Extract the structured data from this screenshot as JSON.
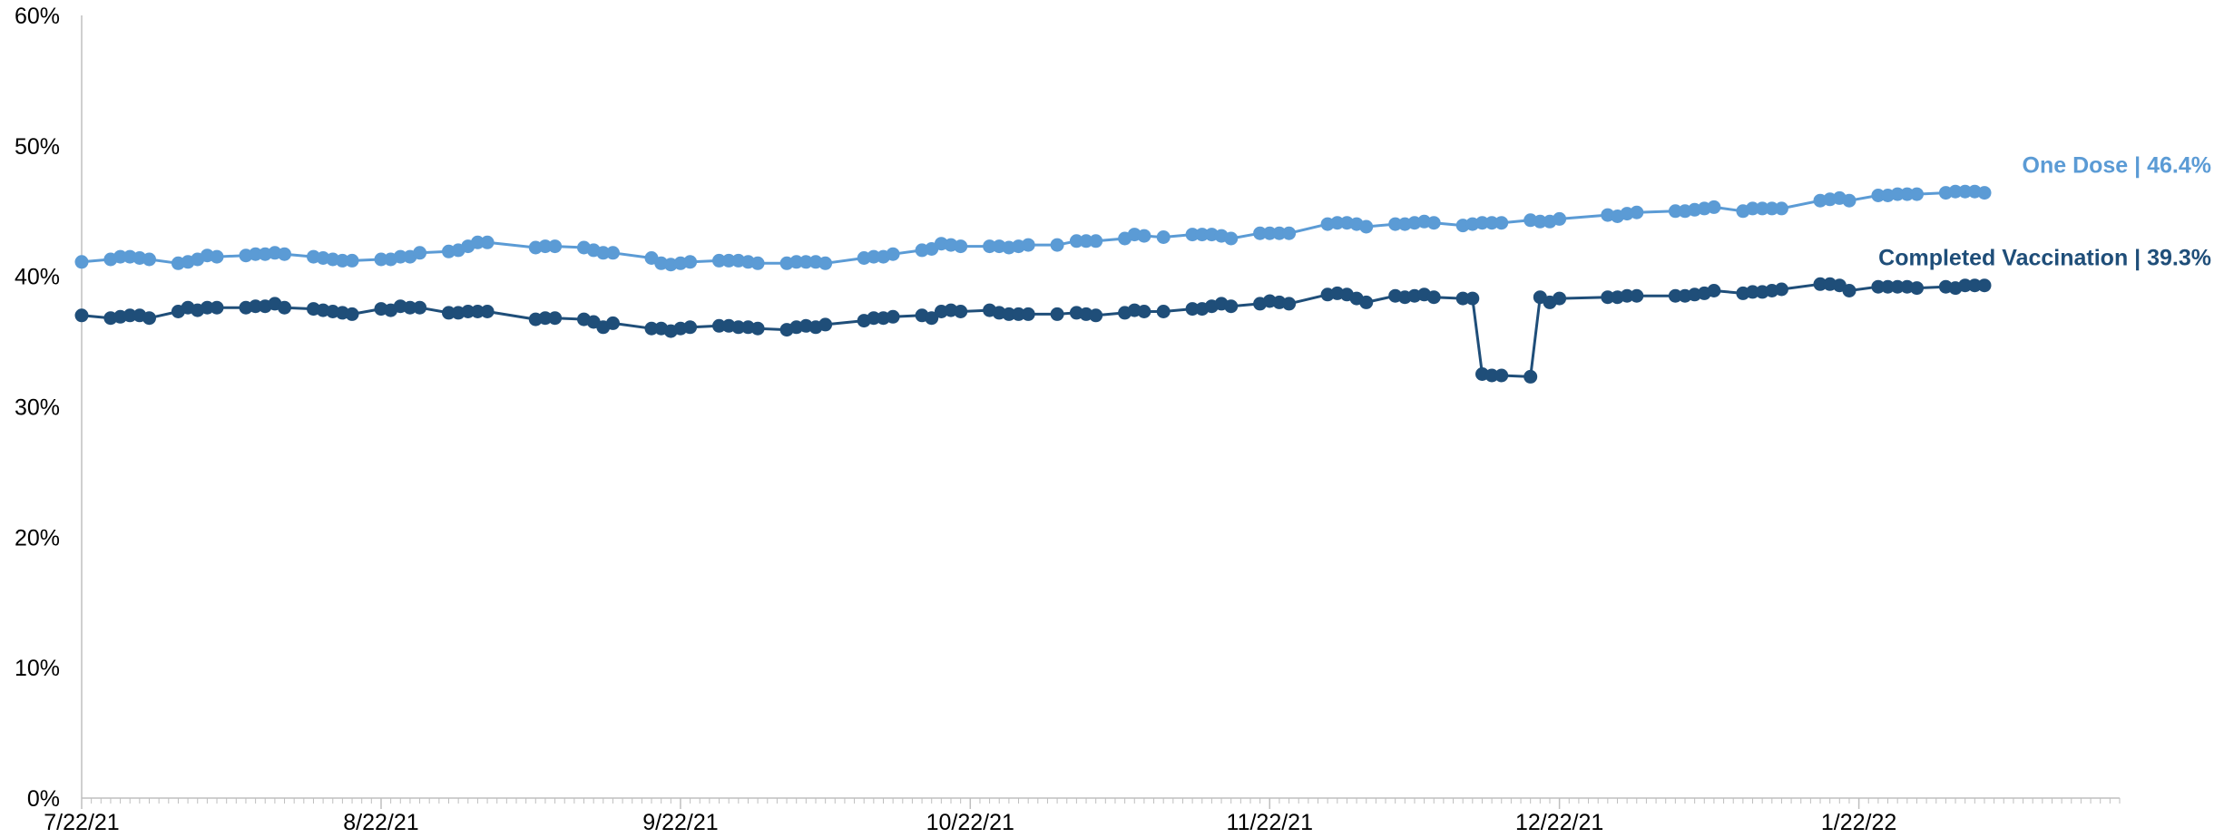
{
  "chart_data": {
    "type": "line",
    "title": "",
    "xlabel": "",
    "ylabel": "",
    "ylim": [
      0,
      0.6
    ],
    "y_ticks": [
      {
        "value": 0.0,
        "label": "0%"
      },
      {
        "value": 0.1,
        "label": "10%"
      },
      {
        "value": 0.2,
        "label": "20%"
      },
      {
        "value": 0.3,
        "label": "30%"
      },
      {
        "value": 0.4,
        "label": "40%"
      },
      {
        "value": 0.5,
        "label": "50%"
      },
      {
        "value": 0.6,
        "label": "60%"
      }
    ],
    "x_range": [
      "2021-07-22",
      "2022-02-18"
    ],
    "x_ticks": [
      {
        "value": "2021-07-22",
        "label": "7/22/21"
      },
      {
        "value": "2021-08-22",
        "label": "8/22/21"
      },
      {
        "value": "2021-09-22",
        "label": "9/22/21"
      },
      {
        "value": "2021-10-22",
        "label": "10/22/21"
      },
      {
        "value": "2021-11-22",
        "label": "11/22/21"
      },
      {
        "value": "2021-12-22",
        "label": "12/22/21"
      },
      {
        "value": "2022-01-22",
        "label": "1/22/22"
      }
    ],
    "grid": false,
    "legend": "none",
    "series": [
      {
        "key": "one_dose",
        "label": "One Dose | 46.4%",
        "color": "#5b9bd5",
        "x": [
          "2021-07-22",
          "2021-07-25",
          "2021-07-26",
          "2021-07-27",
          "2021-07-28",
          "2021-07-29",
          "2021-08-01",
          "2021-08-02",
          "2021-08-03",
          "2021-08-04",
          "2021-08-05",
          "2021-08-08",
          "2021-08-09",
          "2021-08-10",
          "2021-08-11",
          "2021-08-12",
          "2021-08-15",
          "2021-08-16",
          "2021-08-17",
          "2021-08-18",
          "2021-08-19",
          "2021-08-22",
          "2021-08-23",
          "2021-08-24",
          "2021-08-25",
          "2021-08-26",
          "2021-08-29",
          "2021-08-30",
          "2021-08-31",
          "2021-09-01",
          "2021-09-02",
          "2021-09-07",
          "2021-09-08",
          "2021-09-09",
          "2021-09-12",
          "2021-09-13",
          "2021-09-14",
          "2021-09-15",
          "2021-09-19",
          "2021-09-20",
          "2021-09-21",
          "2021-09-22",
          "2021-09-23",
          "2021-09-26",
          "2021-09-27",
          "2021-09-28",
          "2021-09-29",
          "2021-09-30",
          "2021-10-03",
          "2021-10-04",
          "2021-10-05",
          "2021-10-06",
          "2021-10-07",
          "2021-10-11",
          "2021-10-12",
          "2021-10-13",
          "2021-10-14",
          "2021-10-17",
          "2021-10-18",
          "2021-10-19",
          "2021-10-20",
          "2021-10-21",
          "2021-10-24",
          "2021-10-25",
          "2021-10-26",
          "2021-10-27",
          "2021-10-28",
          "2021-10-31",
          "2021-11-02",
          "2021-11-03",
          "2021-11-04",
          "2021-11-07",
          "2021-11-08",
          "2021-11-09",
          "2021-11-11",
          "2021-11-14",
          "2021-11-15",
          "2021-11-16",
          "2021-11-17",
          "2021-11-18",
          "2021-11-21",
          "2021-11-22",
          "2021-11-23",
          "2021-11-24",
          "2021-11-28",
          "2021-11-29",
          "2021-11-30",
          "2021-12-01",
          "2021-12-02",
          "2021-12-05",
          "2021-12-06",
          "2021-12-07",
          "2021-12-08",
          "2021-12-09",
          "2021-12-12",
          "2021-12-13",
          "2021-12-14",
          "2021-12-15",
          "2021-12-16",
          "2021-12-19",
          "2021-12-20",
          "2021-12-21",
          "2021-12-22",
          "2021-12-27",
          "2021-12-28",
          "2021-12-29",
          "2021-12-30",
          "2022-01-03",
          "2022-01-04",
          "2022-01-05",
          "2022-01-06",
          "2022-01-07",
          "2022-01-10",
          "2022-01-11",
          "2022-01-12",
          "2022-01-13",
          "2022-01-14",
          "2022-01-18",
          "2022-01-19",
          "2022-01-20",
          "2022-01-21",
          "2022-01-24",
          "2022-01-25",
          "2022-01-26",
          "2022-01-27",
          "2022-01-28",
          "2022-01-31",
          "2022-02-01",
          "2022-02-02",
          "2022-02-03",
          "2022-02-04"
        ],
        "y": [
          0.411,
          0.413,
          0.415,
          0.415,
          0.414,
          0.413,
          0.41,
          0.411,
          0.413,
          0.416,
          0.415,
          0.416,
          0.417,
          0.417,
          0.418,
          0.417,
          0.415,
          0.414,
          0.413,
          0.412,
          0.412,
          0.413,
          0.413,
          0.415,
          0.415,
          0.418,
          0.419,
          0.42,
          0.423,
          0.426,
          0.426,
          0.422,
          0.423,
          0.423,
          0.422,
          0.42,
          0.418,
          0.418,
          0.414,
          0.41,
          0.409,
          0.41,
          0.411,
          0.412,
          0.412,
          0.412,
          0.411,
          0.41,
          0.41,
          0.411,
          0.411,
          0.411,
          0.41,
          0.414,
          0.415,
          0.415,
          0.417,
          0.42,
          0.421,
          0.425,
          0.424,
          0.423,
          0.423,
          0.423,
          0.422,
          0.423,
          0.424,
          0.424,
          0.427,
          0.427,
          0.427,
          0.429,
          0.432,
          0.431,
          0.43,
          0.432,
          0.432,
          0.432,
          0.431,
          0.429,
          0.433,
          0.433,
          0.433,
          0.433,
          0.44,
          0.441,
          0.441,
          0.44,
          0.438,
          0.44,
          0.44,
          0.441,
          0.442,
          0.441,
          0.439,
          0.44,
          0.441,
          0.441,
          0.441,
          0.443,
          0.442,
          0.442,
          0.444,
          0.447,
          0.446,
          0.448,
          0.449,
          0.45,
          0.45,
          0.451,
          0.452,
          0.453,
          0.45,
          0.452,
          0.452,
          0.452,
          0.452,
          0.458,
          0.459,
          0.46,
          0.458,
          0.462,
          0.462,
          0.463,
          0.463,
          0.463,
          0.464,
          0.465,
          0.465,
          0.465,
          0.464
        ]
      },
      {
        "key": "completed",
        "label": "Completed Vaccination | 39.3%",
        "color": "#1f4e79",
        "x": [
          "2021-07-22",
          "2021-07-25",
          "2021-07-26",
          "2021-07-27",
          "2021-07-28",
          "2021-07-29",
          "2021-08-01",
          "2021-08-02",
          "2021-08-03",
          "2021-08-04",
          "2021-08-05",
          "2021-08-08",
          "2021-08-09",
          "2021-08-10",
          "2021-08-11",
          "2021-08-12",
          "2021-08-15",
          "2021-08-16",
          "2021-08-17",
          "2021-08-18",
          "2021-08-19",
          "2021-08-22",
          "2021-08-23",
          "2021-08-24",
          "2021-08-25",
          "2021-08-26",
          "2021-08-29",
          "2021-08-30",
          "2021-08-31",
          "2021-09-01",
          "2021-09-02",
          "2021-09-07",
          "2021-09-08",
          "2021-09-09",
          "2021-09-12",
          "2021-09-13",
          "2021-09-14",
          "2021-09-15",
          "2021-09-19",
          "2021-09-20",
          "2021-09-21",
          "2021-09-22",
          "2021-09-23",
          "2021-09-26",
          "2021-09-27",
          "2021-09-28",
          "2021-09-29",
          "2021-09-30",
          "2021-10-03",
          "2021-10-04",
          "2021-10-05",
          "2021-10-06",
          "2021-10-07",
          "2021-10-11",
          "2021-10-12",
          "2021-10-13",
          "2021-10-14",
          "2021-10-17",
          "2021-10-18",
          "2021-10-19",
          "2021-10-20",
          "2021-10-21",
          "2021-10-24",
          "2021-10-25",
          "2021-10-26",
          "2021-10-27",
          "2021-10-28",
          "2021-10-31",
          "2021-11-02",
          "2021-11-03",
          "2021-11-04",
          "2021-11-07",
          "2021-11-08",
          "2021-11-09",
          "2021-11-11",
          "2021-11-14",
          "2021-11-15",
          "2021-11-16",
          "2021-11-17",
          "2021-11-18",
          "2021-11-21",
          "2021-11-22",
          "2021-11-23",
          "2021-11-24",
          "2021-11-28",
          "2021-11-29",
          "2021-11-30",
          "2021-12-01",
          "2021-12-02",
          "2021-12-05",
          "2021-12-06",
          "2021-12-07",
          "2021-12-08",
          "2021-12-09",
          "2021-12-12",
          "2021-12-13",
          "2021-12-14",
          "2021-12-15",
          "2021-12-16",
          "2021-12-19",
          "2021-12-20",
          "2021-12-21",
          "2021-12-22",
          "2021-12-27",
          "2021-12-28",
          "2021-12-29",
          "2021-12-30",
          "2022-01-03",
          "2022-01-04",
          "2022-01-05",
          "2022-01-06",
          "2022-01-07",
          "2022-01-10",
          "2022-01-11",
          "2022-01-12",
          "2022-01-13",
          "2022-01-14",
          "2022-01-18",
          "2022-01-19",
          "2022-01-20",
          "2022-01-21",
          "2022-01-24",
          "2022-01-25",
          "2022-01-26",
          "2022-01-27",
          "2022-01-28",
          "2022-01-31",
          "2022-02-01",
          "2022-02-02",
          "2022-02-03",
          "2022-02-04"
        ],
        "y": [
          0.37,
          0.368,
          0.369,
          0.37,
          0.37,
          0.368,
          0.373,
          0.376,
          0.374,
          0.376,
          0.376,
          0.376,
          0.377,
          0.377,
          0.379,
          0.376,
          0.375,
          0.374,
          0.373,
          0.372,
          0.371,
          0.375,
          0.374,
          0.377,
          0.376,
          0.376,
          0.372,
          0.372,
          0.373,
          0.373,
          0.373,
          0.367,
          0.368,
          0.368,
          0.367,
          0.365,
          0.361,
          0.364,
          0.36,
          0.36,
          0.358,
          0.36,
          0.361,
          0.362,
          0.362,
          0.361,
          0.361,
          0.36,
          0.359,
          0.361,
          0.362,
          0.361,
          0.363,
          0.366,
          0.368,
          0.368,
          0.369,
          0.37,
          0.368,
          0.373,
          0.374,
          0.373,
          0.374,
          0.372,
          0.371,
          0.371,
          0.371,
          0.371,
          0.372,
          0.371,
          0.37,
          0.372,
          0.374,
          0.373,
          0.373,
          0.375,
          0.375,
          0.377,
          0.379,
          0.377,
          0.379,
          0.381,
          0.38,
          0.379,
          0.386,
          0.387,
          0.386,
          0.383,
          0.38,
          0.385,
          0.384,
          0.385,
          0.386,
          0.384,
          0.383,
          0.383,
          0.325,
          0.324,
          0.324,
          0.323,
          0.384,
          0.38,
          0.383,
          0.384,
          0.384,
          0.385,
          0.385,
          0.385,
          0.385,
          0.386,
          0.387,
          0.389,
          0.387,
          0.388,
          0.388,
          0.389,
          0.39,
          0.394,
          0.394,
          0.393,
          0.389,
          0.392,
          0.392,
          0.392,
          0.392,
          0.391,
          0.392,
          0.391,
          0.393,
          0.393,
          0.393
        ]
      }
    ]
  },
  "colors": {
    "axis": "#bfbfbf",
    "tick_text": "#000000"
  }
}
